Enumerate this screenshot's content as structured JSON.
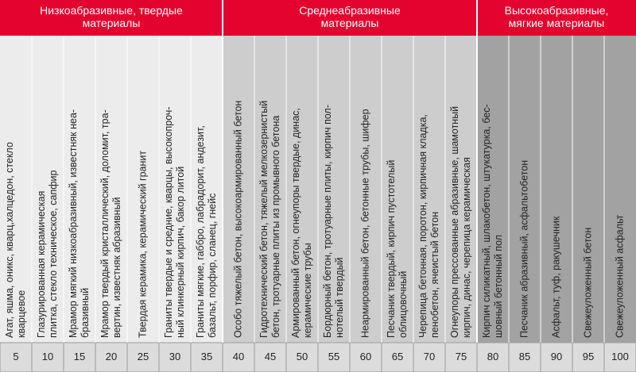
{
  "groups": [
    {
      "title": [
        "Низкоабразивные, твердые",
        "материалы"
      ],
      "columns": [
        {
          "lines": [
            "Агат, яшма, оникс, кварц,халцедон, стекло",
            "кварцевое"
          ],
          "value": 5
        },
        {
          "lines": [
            "Глазурированная керамическая",
            "плитка, стекло техническое, сапфир"
          ],
          "value": 10
        },
        {
          "lines": [
            "Мрамор мягкий низкоабразивный, известняк неа-",
            "бразивный"
          ],
          "value": 15
        },
        {
          "lines": [
            "Мрамор твердый кристаллический, доломит, тра-",
            "вертин, известняк абразивный"
          ],
          "value": 20
        },
        {
          "lines": [
            "Твердая керамика, керамический гранит"
          ],
          "value": 25
        },
        {
          "lines": [
            "Граниты твердые и средние, кварцы, высокопроч-",
            "ный клинкерный кирпич, бакор литой"
          ],
          "value": 30
        },
        {
          "lines": [
            "Граниты мягкие, габбро, лабрадорит, андезит,",
            "базальт, порфир, сланец, гнейс"
          ],
          "value": 35
        }
      ]
    },
    {
      "title": [
        "Среднеабразивные",
        "материалы"
      ],
      "columns": [
        {
          "lines": [
            "Особо тяжелый бетон, высокоармированный бетон"
          ],
          "value": 40
        },
        {
          "lines": [
            "Гидротехнический бетон, тяжелый мелкозернистый",
            "бетон, тротуарные плиты из промывного бетона"
          ],
          "value": 45
        },
        {
          "lines": [
            "Армированный бетон, огнеупоры твердые, динас,",
            "керамические трубы"
          ],
          "value": 50
        },
        {
          "lines": [
            "Бордюрный бетон, тротуарные плиты, кирпич пол-",
            "нотелый твердый"
          ],
          "value": 55
        },
        {
          "lines": [
            "Неармированный бетон, бетонные трубы, шифер"
          ],
          "value": 60
        },
        {
          "lines": [
            "Песчаник твердый, кирпич пустотелый",
            "облицовочный"
          ],
          "value": 65
        },
        {
          "lines": [
            "Черепица бетонная, поротон, кирпичная кладка,",
            "пенобетон, ячеистый бетон"
          ],
          "value": 70
        },
        {
          "lines": [
            "Огнеупоры прессованные абразивные, шамотный",
            "кирпич, динас, черепица керамическая"
          ],
          "value": 75
        }
      ]
    },
    {
      "title": [
        "Высокоабразивные,",
        "мягкие материалы"
      ],
      "columns": [
        {
          "lines": [
            "Кирпич силикатный, шлакобетон, штукатурка, бес-",
            "шовный бетонный пол"
          ],
          "value": 80
        },
        {
          "lines": [
            "Песчаник абразивный, асфальтобетон"
          ],
          "value": 85
        },
        {
          "lines": [
            "Асфальт, туф, ракушечник"
          ],
          "value": 90
        },
        {
          "lines": [
            "Свежеуложенный бетон"
          ],
          "value": 95
        },
        {
          "lines": [
            "Свежеуложенный асфальт"
          ],
          "value": 100
        }
      ]
    }
  ]
}
